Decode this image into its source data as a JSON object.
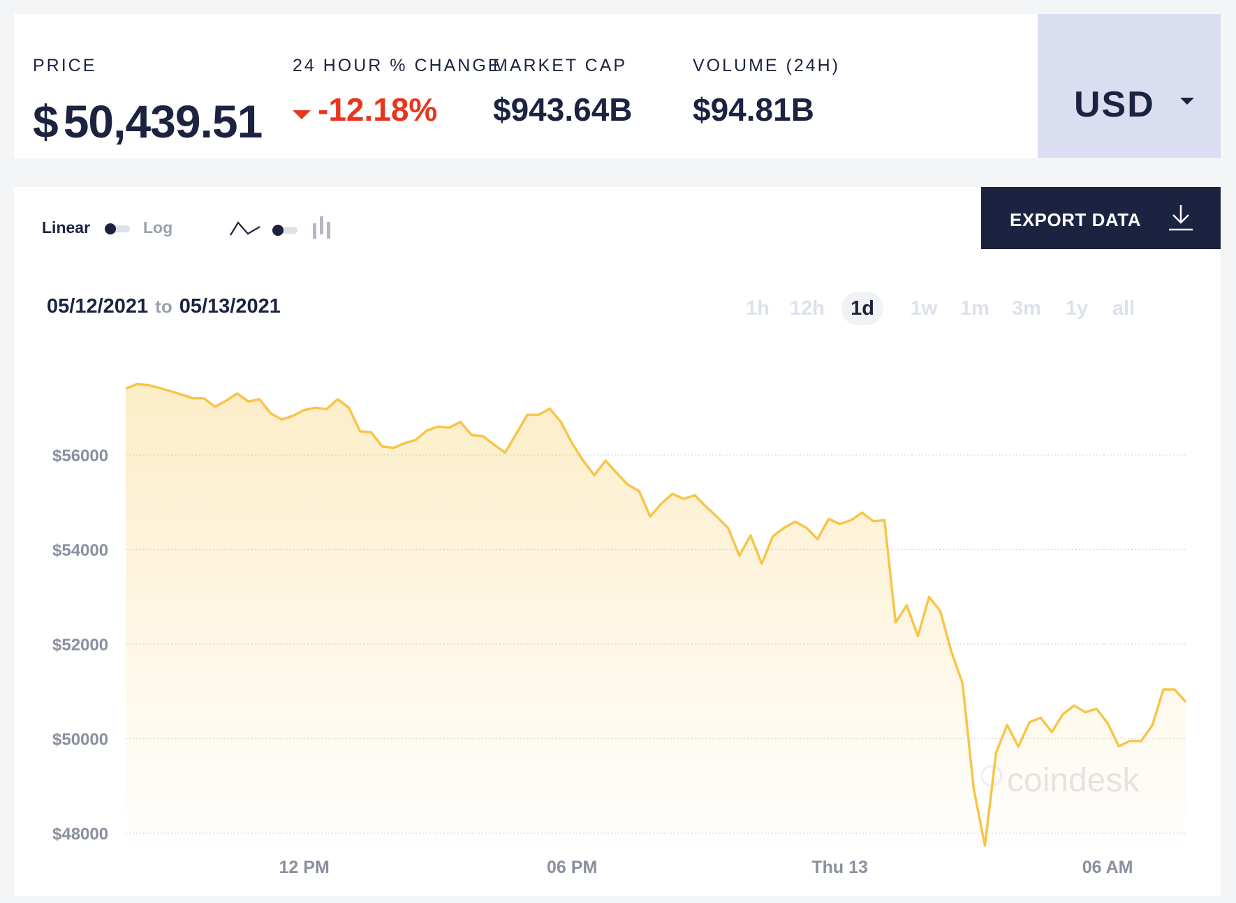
{
  "stats": {
    "price": {
      "label": "PRICE",
      "currency_symbol": "$",
      "value": "50,439.51"
    },
    "change": {
      "label": "24 HOUR % CHANGE",
      "value": "-12.18%",
      "direction": "down"
    },
    "market_cap": {
      "label": "MARKET CAP",
      "value": "$943.64B"
    },
    "volume": {
      "label": "VOLUME (24H)",
      "value": "$94.81B"
    }
  },
  "currency_selector": {
    "value": "USD",
    "icon": "caret-down-icon"
  },
  "toolbar": {
    "scale_linear": "Linear",
    "scale_log": "Log",
    "scale_selected": "Linear",
    "chart_type_line_icon": "line-chart-icon",
    "chart_type_candle_icon": "candlestick-chart-icon",
    "export_label": "EXPORT DATA",
    "export_icon": "download-icon"
  },
  "date_range": {
    "from": "05/12/2021",
    "to_word": "to",
    "to": "05/13/2021"
  },
  "ranges": [
    "1h",
    "12h",
    "1d",
    "1w",
    "1m",
    "3m",
    "1y",
    "all"
  ],
  "active_range": "1d",
  "colors": {
    "accent": "#f7c548",
    "negative": "#e8361e",
    "navy": "#1b2340"
  },
  "watermark": "coindesk",
  "chart_data": {
    "type": "area",
    "x": [
      0,
      0.25,
      0.5,
      0.75,
      1,
      1.25,
      1.5,
      1.75,
      2,
      2.25,
      2.5,
      2.75,
      3,
      3.25,
      3.5,
      3.75,
      4,
      4.25,
      4.5,
      4.75,
      5,
      5.25,
      5.5,
      5.75,
      6,
      6.25,
      6.5,
      6.75,
      7,
      7.25,
      7.5,
      7.75,
      8,
      8.25,
      8.5,
      8.75,
      9,
      9.25,
      9.5,
      9.75,
      10,
      10.25,
      10.5,
      10.75,
      11,
      11.25,
      11.5,
      11.75,
      12,
      12.25,
      12.5,
      12.75,
      13,
      13.25,
      13.5,
      13.75,
      14,
      14.25,
      14.5,
      14.75,
      15,
      15.25,
      15.5,
      15.75,
      16,
      16.25,
      16.5,
      16.75,
      17,
      17.25,
      17.5,
      17.75,
      18,
      18.25,
      18.5,
      18.75,
      19,
      19.25,
      19.5,
      19.75,
      20,
      20.25,
      20.5,
      20.75,
      21,
      21.25,
      21.5,
      21.75,
      22,
      22.25,
      22.5,
      22.75,
      23,
      23.25,
      23.5,
      23.75
    ],
    "values": [
      57400,
      57500,
      57480,
      57420,
      57350,
      57280,
      57200,
      57200,
      57020,
      57150,
      57300,
      57130,
      57180,
      56880,
      56750,
      56830,
      56950,
      57000,
      56970,
      57180,
      57000,
      56500,
      56480,
      56180,
      56150,
      56250,
      56320,
      56520,
      56600,
      56580,
      56700,
      56420,
      56400,
      56220,
      56050,
      56450,
      56850,
      56850,
      56980,
      56700,
      56250,
      55880,
      55570,
      55880,
      55620,
      55370,
      55240,
      54700,
      54970,
      55180,
      55070,
      55150,
      54910,
      54690,
      54450,
      53870,
      54300,
      53700,
      54280,
      54460,
      54590,
      54460,
      54220,
      54650,
      54540,
      54620,
      54780,
      54600,
      54620,
      52460,
      52820,
      52170,
      53000,
      52700,
      51840,
      51170,
      48940,
      47740,
      49700,
      50290,
      49830,
      50350,
      50440,
      50140,
      50520,
      50700,
      50560,
      50630,
      50330,
      49840,
      49950,
      49950,
      50280,
      51040,
      51040,
      50780
    ],
    "title": "",
    "xlabel": "",
    "ylabel": "",
    "ylim": [
      47700,
      57500
    ],
    "y_ticks": [
      48000,
      50000,
      52000,
      54000,
      56000
    ],
    "y_tick_labels": [
      "$48000",
      "$50000",
      "$52000",
      "$54000",
      "$56000"
    ],
    "x_ticks": [
      4,
      10,
      16,
      22
    ],
    "x_tick_labels": [
      "12 PM",
      "06 PM",
      "Thu 13",
      "06 AM"
    ],
    "grid": "horizontal dotted",
    "line_color": "#f7c548",
    "fill": "gradient"
  }
}
